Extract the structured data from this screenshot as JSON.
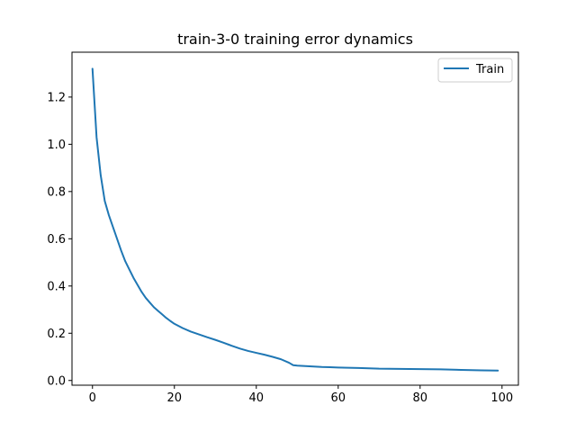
{
  "chart_data": {
    "type": "line",
    "title": "train-3-0 training error dynamics",
    "xlabel": "",
    "ylabel": "",
    "xlim": [
      -5,
      104
    ],
    "ylim": [
      -0.02,
      1.39
    ],
    "xticks": [
      0,
      20,
      40,
      60,
      80,
      100
    ],
    "yticks": [
      0.0,
      0.2,
      0.4,
      0.6,
      0.8,
      1.0,
      1.2
    ],
    "grid": false,
    "legend_position": "top-right",
    "colors": {
      "series": "#1f77b4",
      "axis": "#000000",
      "background": "#ffffff"
    },
    "series": [
      {
        "name": "Train",
        "x": [
          0,
          1,
          2,
          3,
          4,
          5,
          6,
          7,
          8,
          9,
          10,
          11,
          12,
          13,
          14,
          15,
          16,
          17,
          18,
          19,
          20,
          22,
          24,
          26,
          28,
          30,
          32,
          34,
          36,
          38,
          40,
          42,
          44,
          46,
          48,
          49,
          50,
          51,
          52,
          53,
          54,
          55,
          56,
          58,
          60,
          65,
          70,
          75,
          80,
          85,
          90,
          95,
          99
        ],
        "y": [
          1.32,
          1.03,
          0.87,
          0.76,
          0.7,
          0.65,
          0.6,
          0.55,
          0.505,
          0.47,
          0.435,
          0.405,
          0.375,
          0.35,
          0.33,
          0.31,
          0.295,
          0.28,
          0.265,
          0.252,
          0.24,
          0.222,
          0.207,
          0.195,
          0.183,
          0.172,
          0.16,
          0.147,
          0.135,
          0.125,
          0.117,
          0.109,
          0.1,
          0.09,
          0.075,
          0.065,
          0.063,
          0.062,
          0.061,
          0.06,
          0.059,
          0.058,
          0.057,
          0.056,
          0.055,
          0.053,
          0.05,
          0.049,
          0.048,
          0.047,
          0.045,
          0.043,
          0.042
        ]
      }
    ]
  }
}
